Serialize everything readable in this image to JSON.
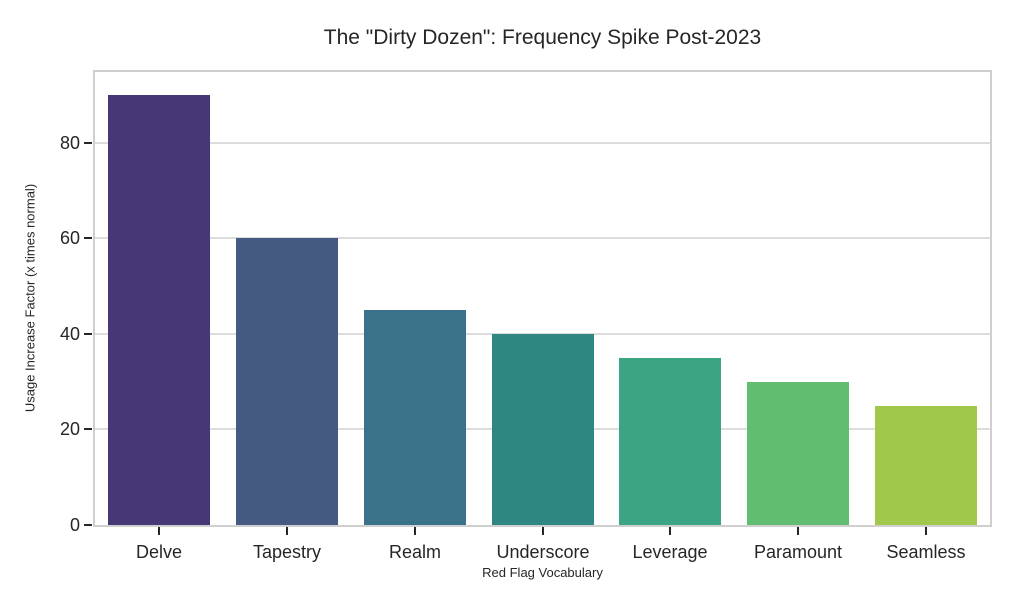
{
  "chart_data": {
    "type": "bar",
    "title": "The \"Dirty Dozen\": Frequency Spike Post-2023",
    "xlabel": "Red Flag Vocabulary",
    "ylabel": "Usage Increase Factor (x times normal)",
    "categories": [
      "Delve",
      "Tapestry",
      "Realm",
      "Underscore",
      "Leverage",
      "Paramount",
      "Seamless"
    ],
    "values": [
      90,
      60,
      45,
      40,
      35,
      30,
      25
    ],
    "bar_colors": [
      "#483776",
      "#455a83",
      "#3a7389",
      "#2f8783",
      "#3ba485",
      "#61bd6f",
      "#a2c84b"
    ],
    "yticks": [
      0,
      20,
      40,
      60,
      80
    ],
    "ylim": [
      0,
      94.8
    ],
    "grid": "horizontal gridlines on",
    "legend": "none",
    "bar_width_fraction": 0.8
  },
  "style": {
    "background": "#ffffff",
    "grid_color": "#dcdcdc",
    "spine_color": "#cfcfcf",
    "tick_color": "#262626",
    "text_color": "#262626"
  }
}
